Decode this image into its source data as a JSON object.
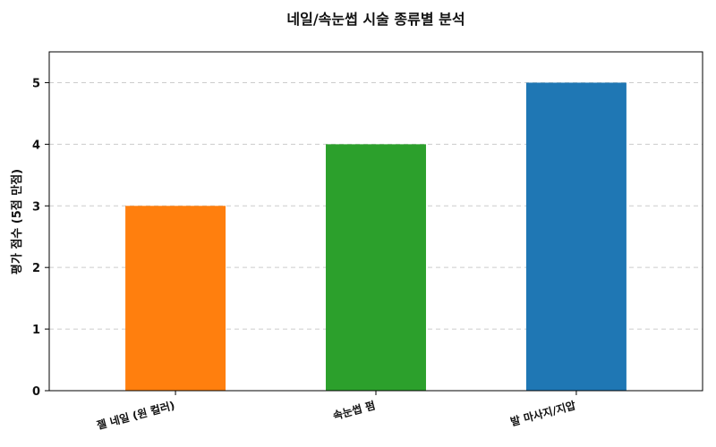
{
  "chart_data": {
    "type": "bar",
    "title": "네일/속눈썹 시술 종류별 분석",
    "xlabel": "",
    "ylabel": "평가 점수 (5점 만점)",
    "categories": [
      "젤 네일 (원 컬러)",
      "속눈썹 펌",
      "발 마사지/지압"
    ],
    "values": [
      3,
      4,
      5
    ],
    "colors": [
      "#ff7f0e",
      "#2ca02c",
      "#1f77b4"
    ],
    "ylim": [
      0,
      5.5
    ],
    "yticks": [
      "0",
      "1",
      "2",
      "3",
      "4",
      "5"
    ],
    "grid": true,
    "legend": "none"
  }
}
